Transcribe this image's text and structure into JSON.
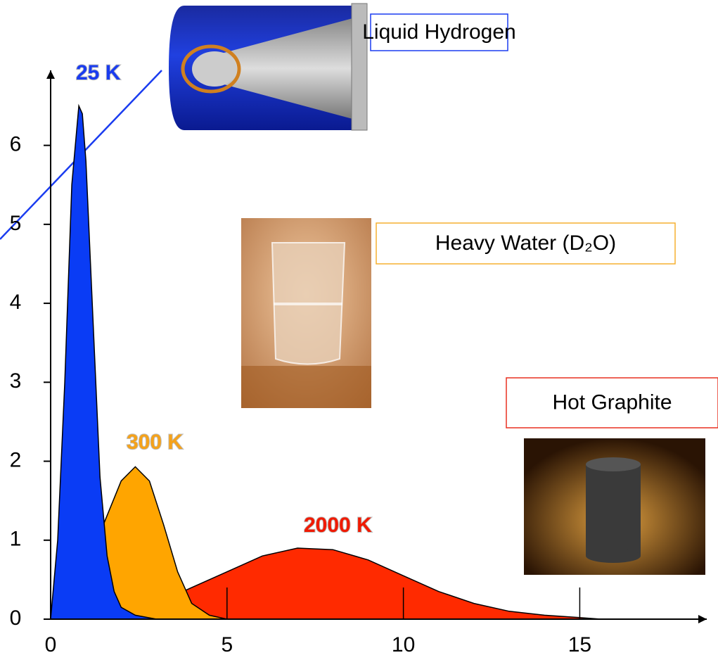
{
  "chart_data": {
    "type": "area",
    "xlim": [
      0,
      18.6
    ],
    "ylim": [
      0,
      6.95
    ],
    "xticks": [
      0,
      5,
      10,
      15
    ],
    "yticks": [
      0,
      1,
      2,
      3,
      4,
      5,
      6
    ],
    "series": [
      {
        "color": "#0a3cf5",
        "x": [
          0,
          0.2,
          0.4,
          0.6,
          0.8,
          0.9,
          1.0,
          1.2,
          1.4,
          1.6,
          1.8,
          2.0,
          2.4,
          3.0
        ],
        "values": [
          0,
          1.0,
          3.0,
          5.5,
          6.5,
          6.4,
          5.8,
          3.8,
          1.8,
          0.8,
          0.35,
          0.15,
          0.05,
          0
        ]
      },
      {
        "color": "#ffa500",
        "x": [
          0.4,
          1.0,
          1.5,
          2.0,
          2.4,
          2.8,
          3.2,
          3.6,
          4.0,
          4.5,
          5.0
        ],
        "values": [
          0,
          0.5,
          1.2,
          1.75,
          1.93,
          1.75,
          1.2,
          0.6,
          0.2,
          0.05,
          0
        ]
      },
      {
        "color": "#ff2a00",
        "x": [
          1.2,
          2,
          3,
          4,
          5,
          6,
          7,
          8,
          9,
          10,
          11,
          12,
          13,
          14,
          15,
          15.6
        ],
        "values": [
          0,
          0.05,
          0.2,
          0.4,
          0.6,
          0.8,
          0.9,
          0.88,
          0.75,
          0.55,
          0.35,
          0.2,
          0.1,
          0.05,
          0.02,
          0
        ]
      }
    ],
    "annotations": [
      {
        "text": "25 K",
        "color": "#1a3cf0"
      },
      {
        "text": "300 K",
        "color": "#f5a21a"
      },
      {
        "text": "2000 K",
        "color": "#f01a00"
      }
    ],
    "callouts": [
      {
        "text": "Liquid Hydrogen",
        "color": "#1a3cf0"
      },
      {
        "text": "Heavy Water (D₂O)",
        "color": "#f5b030"
      },
      {
        "text": "Hot Graphite",
        "color": "#e83020"
      }
    ]
  }
}
